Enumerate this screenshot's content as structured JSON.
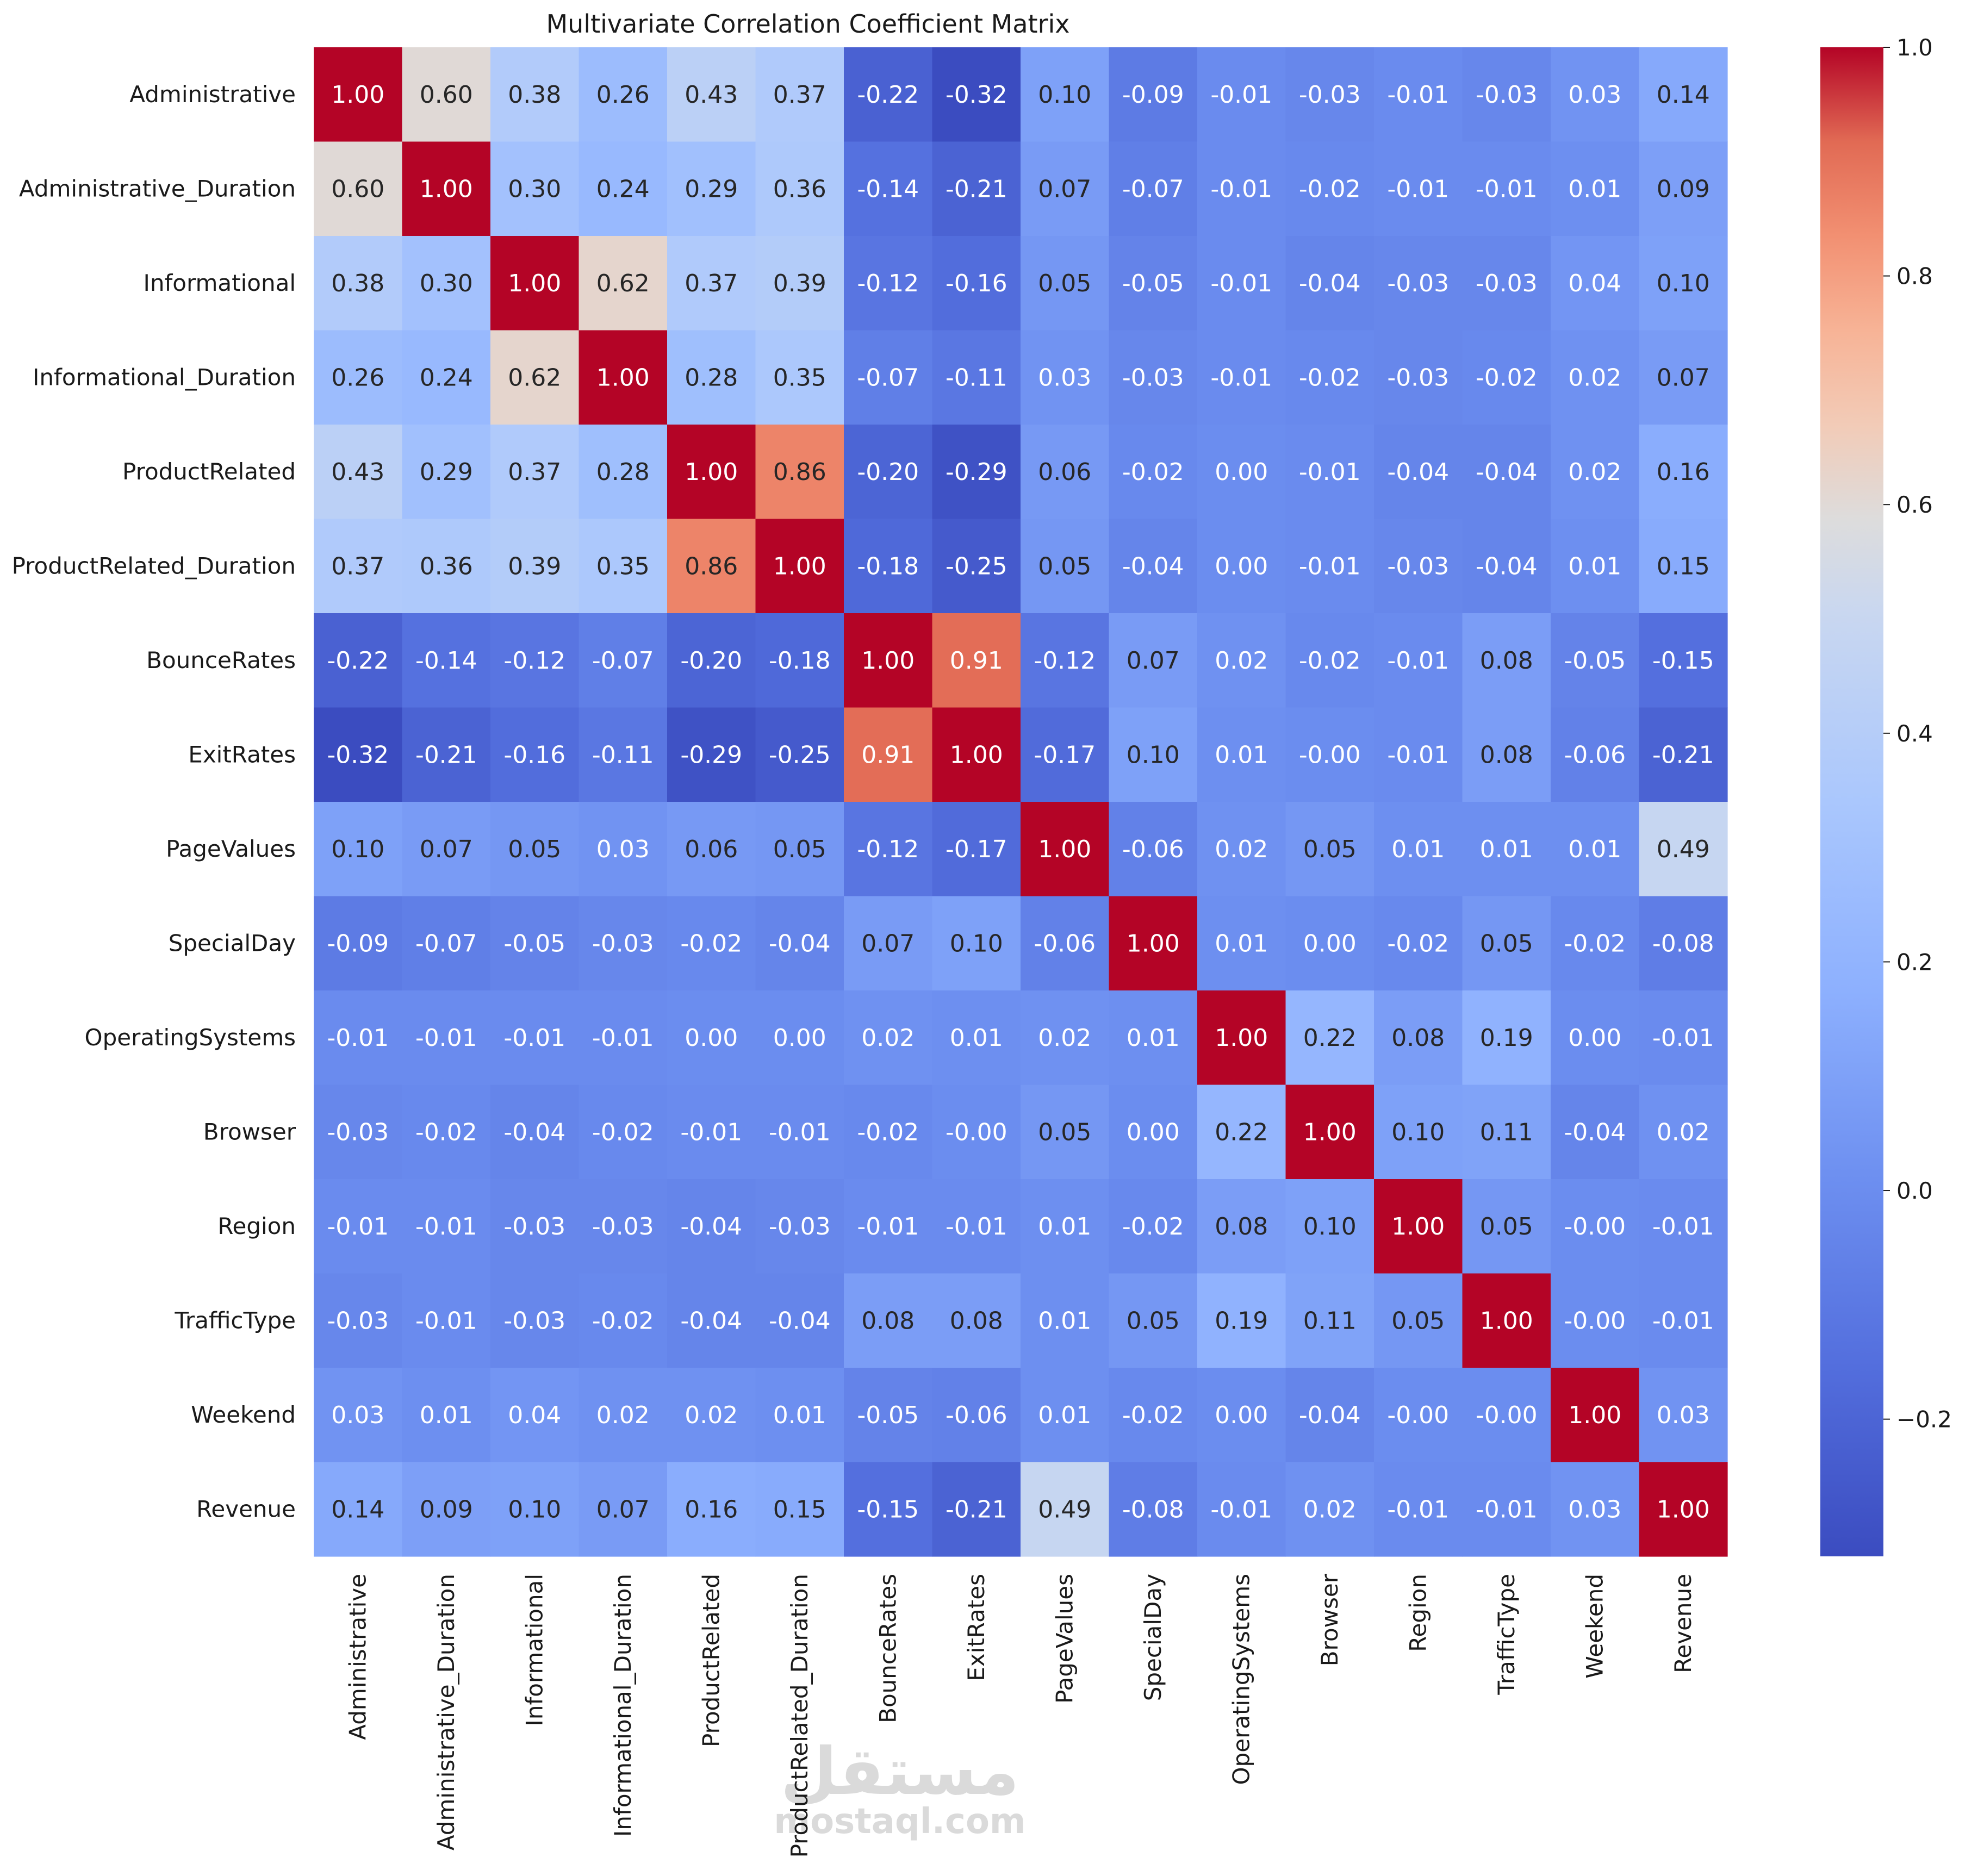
{
  "chart_data": {
    "type": "heatmap",
    "title": "Multivariate Correlation Coefficient Matrix",
    "labels": [
      "Administrative",
      "Administrative_Duration",
      "Informational",
      "Informational_Duration",
      "ProductRelated",
      "ProductRelated_Duration",
      "BounceRates",
      "ExitRates",
      "PageValues",
      "SpecialDay",
      "OperatingSystems",
      "Browser",
      "Region",
      "TrafficType",
      "Weekend",
      "Revenue"
    ],
    "values": [
      [
        1.0,
        0.6,
        0.38,
        0.26,
        0.43,
        0.37,
        -0.22,
        -0.32,
        0.1,
        -0.09,
        -0.01,
        -0.03,
        -0.01,
        -0.03,
        0.03,
        0.14
      ],
      [
        0.6,
        1.0,
        0.3,
        0.24,
        0.29,
        0.36,
        -0.14,
        -0.21,
        0.07,
        -0.07,
        -0.01,
        -0.02,
        -0.01,
        -0.01,
        0.01,
        0.09
      ],
      [
        0.38,
        0.3,
        1.0,
        0.62,
        0.37,
        0.39,
        -0.12,
        -0.16,
        0.05,
        -0.05,
        -0.01,
        -0.04,
        -0.03,
        -0.03,
        0.04,
        0.1
      ],
      [
        0.26,
        0.24,
        0.62,
        1.0,
        0.28,
        0.35,
        -0.07,
        -0.11,
        0.03,
        -0.03,
        -0.01,
        -0.02,
        -0.03,
        -0.02,
        0.02,
        0.07
      ],
      [
        0.43,
        0.29,
        0.37,
        0.28,
        1.0,
        0.86,
        -0.2,
        -0.29,
        0.06,
        -0.02,
        0.0,
        -0.01,
        -0.04,
        -0.04,
        0.02,
        0.16
      ],
      [
        0.37,
        0.36,
        0.39,
        0.35,
        0.86,
        1.0,
        -0.18,
        -0.25,
        0.05,
        -0.04,
        0.0,
        -0.01,
        -0.03,
        -0.04,
        0.01,
        0.15
      ],
      [
        -0.22,
        -0.14,
        -0.12,
        -0.07,
        -0.2,
        -0.18,
        1.0,
        0.91,
        -0.12,
        0.07,
        0.02,
        -0.02,
        -0.01,
        0.08,
        -0.05,
        -0.15
      ],
      [
        -0.32,
        -0.21,
        -0.16,
        -0.11,
        -0.29,
        -0.25,
        0.91,
        1.0,
        -0.17,
        0.1,
        0.01,
        -0.0,
        -0.01,
        0.08,
        -0.06,
        -0.21
      ],
      [
        0.1,
        0.07,
        0.05,
        0.03,
        0.06,
        0.05,
        -0.12,
        -0.17,
        1.0,
        -0.06,
        0.02,
        0.05,
        0.01,
        0.01,
        0.01,
        0.49
      ],
      [
        -0.09,
        -0.07,
        -0.05,
        -0.03,
        -0.02,
        -0.04,
        0.07,
        0.1,
        -0.06,
        1.0,
        0.01,
        0.0,
        -0.02,
        0.05,
        -0.02,
        -0.08
      ],
      [
        -0.01,
        -0.01,
        -0.01,
        -0.01,
        0.0,
        0.0,
        0.02,
        0.01,
        0.02,
        0.01,
        1.0,
        0.22,
        0.08,
        0.19,
        0.0,
        -0.01
      ],
      [
        -0.03,
        -0.02,
        -0.04,
        -0.02,
        -0.01,
        -0.01,
        -0.02,
        -0.0,
        0.05,
        0.0,
        0.22,
        1.0,
        0.1,
        0.11,
        -0.04,
        0.02
      ],
      [
        -0.01,
        -0.01,
        -0.03,
        -0.03,
        -0.04,
        -0.03,
        -0.01,
        -0.01,
        0.01,
        -0.02,
        0.08,
        0.1,
        1.0,
        0.05,
        -0.0,
        -0.01
      ],
      [
        -0.03,
        -0.01,
        -0.03,
        -0.02,
        -0.04,
        -0.04,
        0.08,
        0.08,
        0.01,
        0.05,
        0.19,
        0.11,
        0.05,
        1.0,
        -0.0,
        -0.01
      ],
      [
        0.03,
        0.01,
        0.04,
        0.02,
        0.02,
        0.01,
        -0.05,
        -0.06,
        0.01,
        -0.02,
        0.0,
        -0.04,
        -0.0,
        -0.0,
        1.0,
        0.03
      ],
      [
        0.14,
        0.09,
        0.1,
        0.07,
        0.16,
        0.15,
        -0.15,
        -0.21,
        0.49,
        -0.08,
        -0.01,
        0.02,
        -0.01,
        -0.01,
        0.03,
        1.0
      ]
    ],
    "value_format": "2 decimals",
    "colormap": "coolwarm",
    "colormap_colors": [
      "#3b4cc0",
      "#b40426"
    ],
    "vmin": -0.32,
    "vmax": 1.0,
    "colorbar_ticks": [
      "1.0",
      "0.8",
      "0.6",
      "0.4",
      "0.2",
      "0.0",
      "−0.2"
    ],
    "grid": false,
    "legend": "colorbar right"
  },
  "watermark": {
    "arabic": "مستقل",
    "latin": "mostaql.com"
  }
}
